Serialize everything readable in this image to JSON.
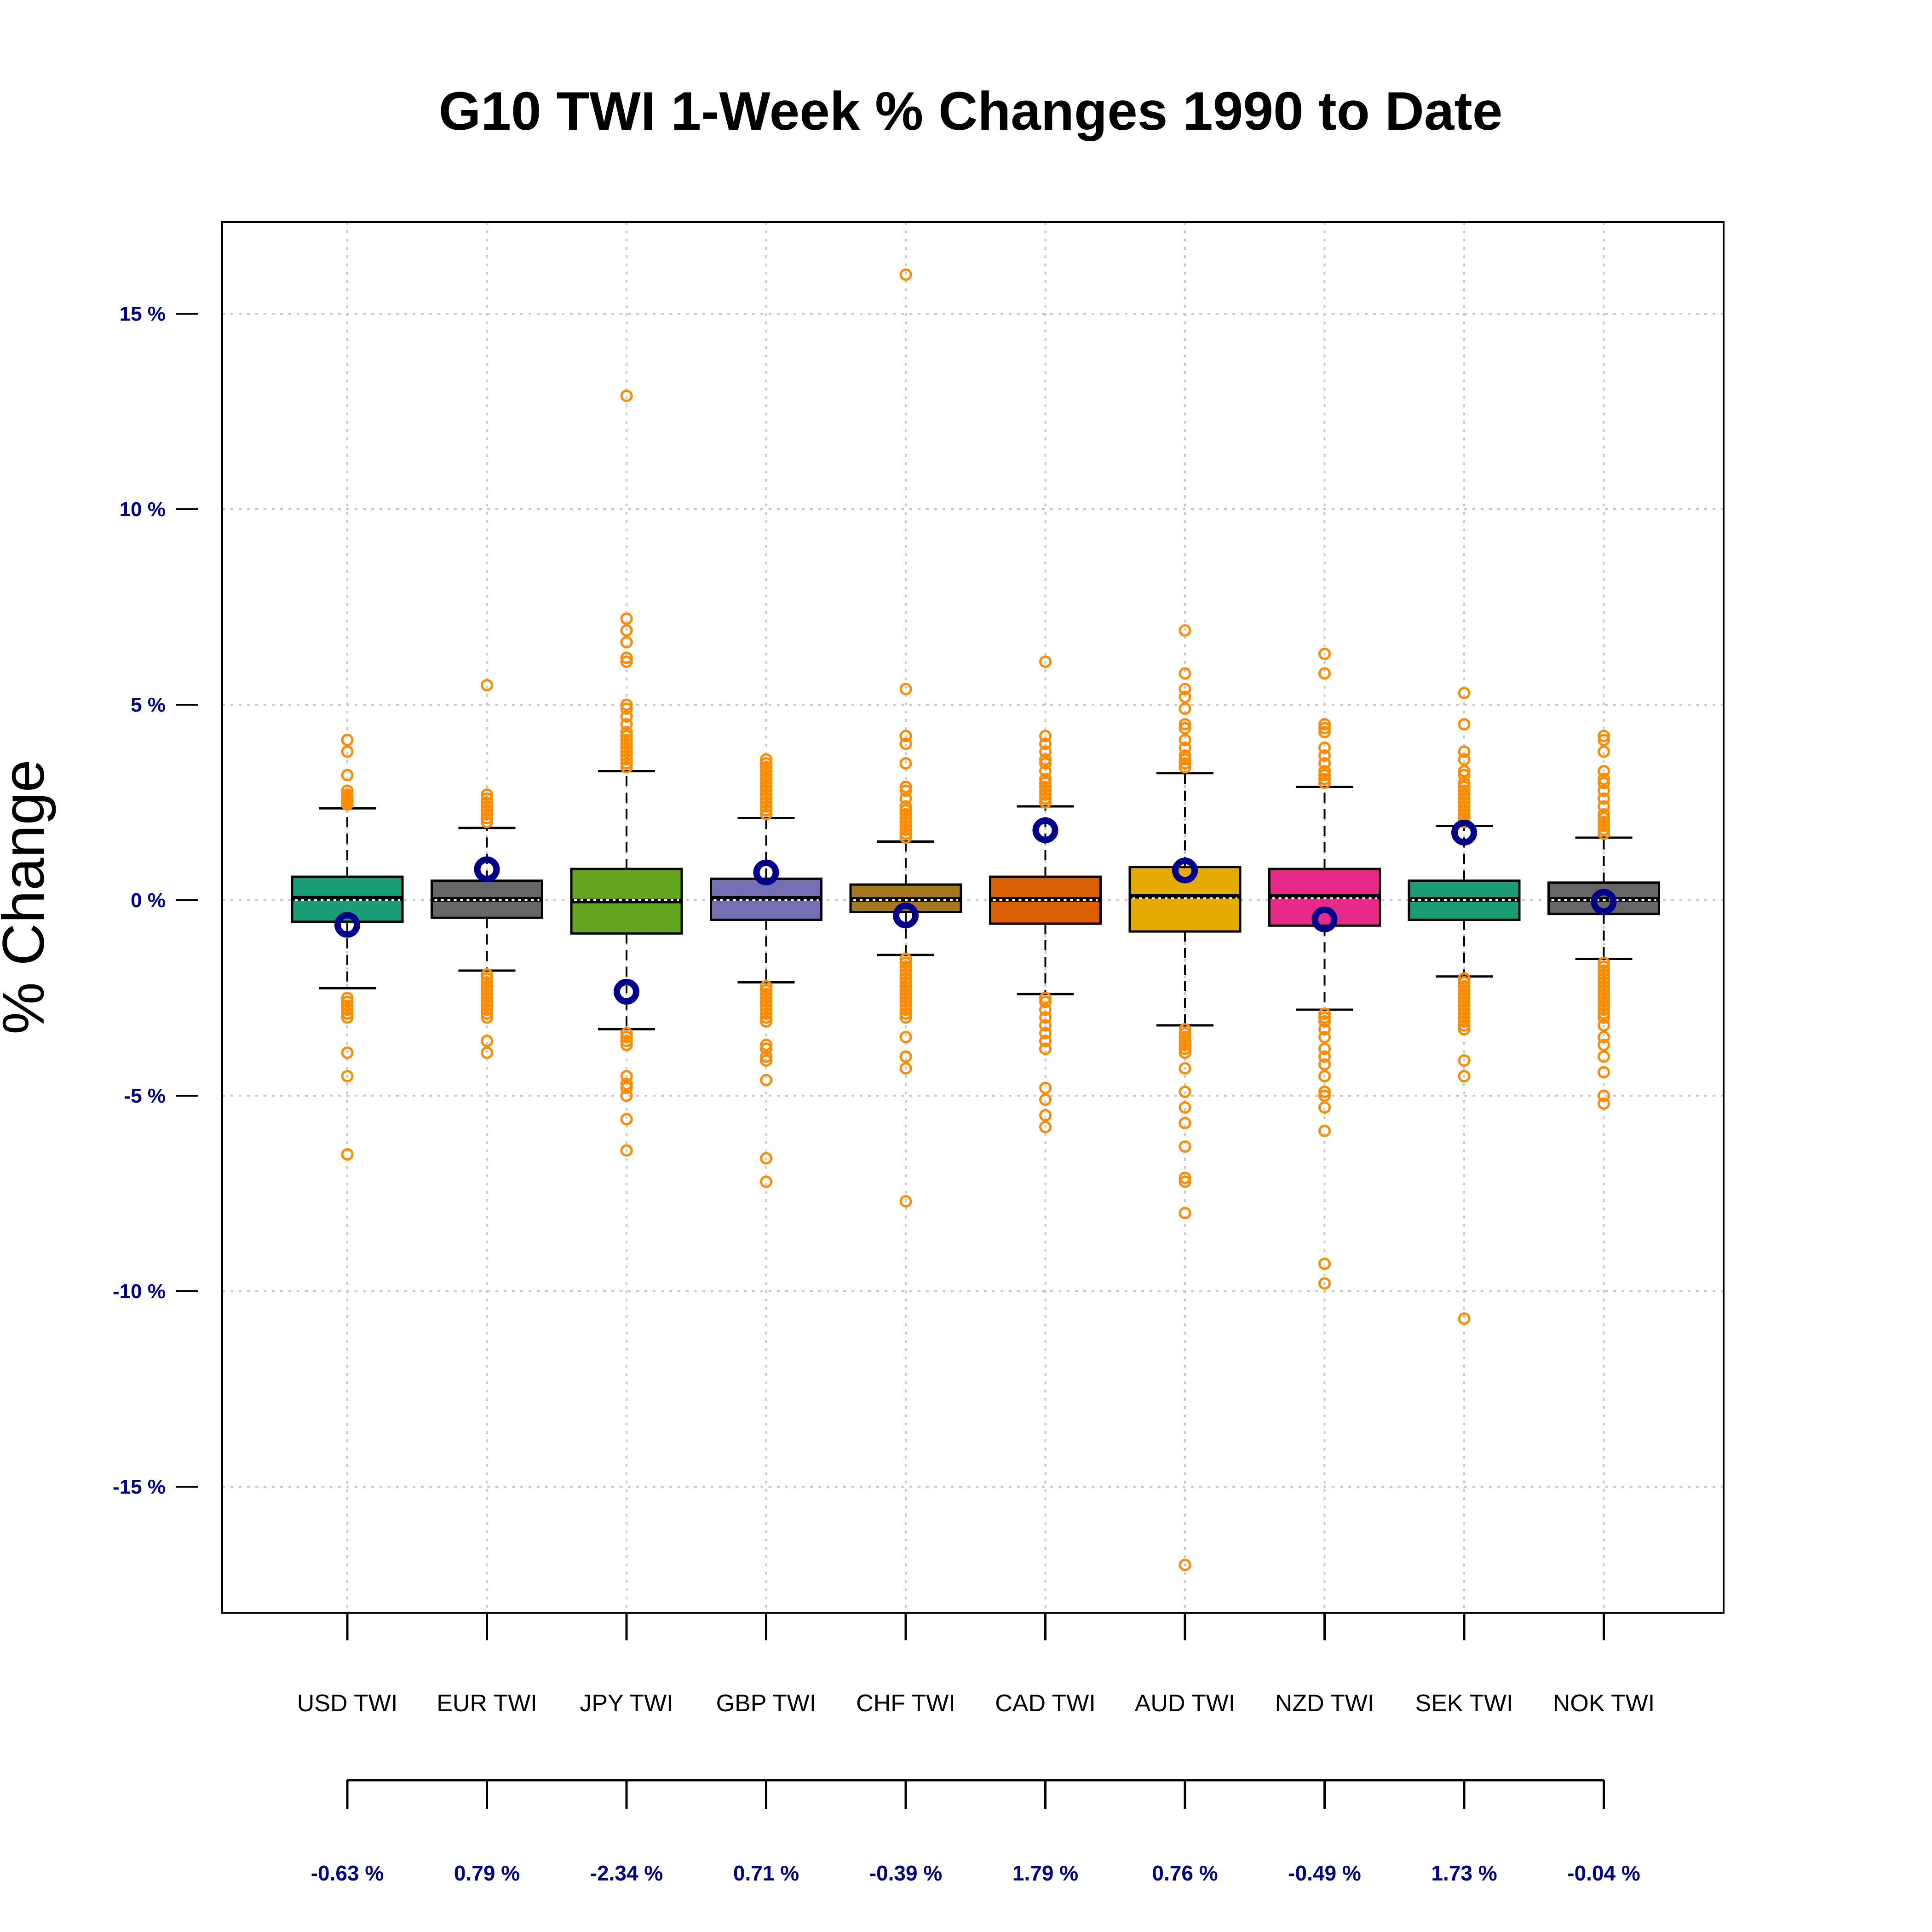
{
  "chart_data": {
    "type": "boxplot",
    "title": "G10 TWI 1-Week % Changes 1990 to Date",
    "xlabel": "",
    "ylabel": "% Change",
    "ylim": [
      -18.3,
      17.4
    ],
    "yticks": [
      15,
      10,
      5,
      0,
      -5,
      -10,
      -15
    ],
    "ytick_labels": [
      "15 %",
      "10 %",
      "5 %",
      "0 %",
      "-5 %",
      "-10 %",
      "-15 %"
    ],
    "grid": true,
    "colors": {
      "outlier": "#FF8C00",
      "latest_marker": "#00008B",
      "axis_text": "#00008B",
      "grid": "#C8C8C8"
    },
    "categories": [
      "USD TWI",
      "EUR TWI",
      "JPY TWI",
      "GBP TWI",
      "CHF TWI",
      "CAD TWI",
      "AUD TWI",
      "NZD TWI",
      "SEK TWI",
      "NOK TWI"
    ],
    "boxes": [
      {
        "name": "USD TWI",
        "color": "#1B9E77",
        "q1": -0.55,
        "median": 0.05,
        "q3": 0.6,
        "mean": 0.0,
        "whisker_low": -2.25,
        "whisker_high": 2.35,
        "latest": -0.63,
        "latest_label": "-0.63 %",
        "outliers": [
          4.1,
          3.8,
          3.2,
          2.8,
          2.7,
          2.65,
          2.6,
          2.55,
          2.5,
          2.45,
          -2.5,
          -2.6,
          -2.7,
          -2.8,
          -2.9,
          -3.0,
          -3.9,
          -4.5,
          -6.5
        ]
      },
      {
        "name": "EUR TWI",
        "color": "#666666",
        "q1": -0.45,
        "median": 0.02,
        "q3": 0.5,
        "mean": 0.0,
        "whisker_low": -1.8,
        "whisker_high": 1.85,
        "latest": 0.79,
        "latest_label": "0.79 %",
        "outliers": [
          5.5,
          2.7,
          2.6,
          2.5,
          2.4,
          2.3,
          2.2,
          2.1,
          2.0,
          -1.9,
          -2.0,
          -2.1,
          -2.2,
          -2.3,
          -2.4,
          -2.5,
          -2.6,
          -2.7,
          -2.8,
          -2.9,
          -3.0,
          -3.6,
          -3.9
        ]
      },
      {
        "name": "JPY TWI",
        "color": "#66A61E",
        "q1": -0.85,
        "median": -0.02,
        "q3": 0.8,
        "mean": 0.0,
        "whisker_low": -3.3,
        "whisker_high": 3.3,
        "latest": -2.34,
        "latest_label": "-2.34 %",
        "outliers": [
          12.9,
          7.2,
          6.9,
          6.6,
          6.2,
          6.1,
          5.0,
          4.9,
          4.7,
          4.5,
          4.3,
          4.2,
          4.1,
          4.0,
          3.9,
          3.8,
          3.7,
          3.6,
          3.5,
          3.4,
          -3.4,
          -3.5,
          -3.6,
          -3.7,
          -4.5,
          -4.7,
          -4.8,
          -5.0,
          -5.6,
          -6.4
        ]
      },
      {
        "name": "GBP TWI",
        "color": "#7570B3",
        "q1": -0.5,
        "median": 0.05,
        "q3": 0.55,
        "mean": 0.0,
        "whisker_low": -2.1,
        "whisker_high": 2.1,
        "latest": 0.71,
        "latest_label": "0.71 %",
        "outliers": [
          3.6,
          3.5,
          3.4,
          3.3,
          3.2,
          3.1,
          3.0,
          2.9,
          2.8,
          2.7,
          2.6,
          2.5,
          2.4,
          2.3,
          2.2,
          -2.2,
          -2.3,
          -2.4,
          -2.5,
          -2.6,
          -2.7,
          -2.8,
          -2.9,
          -3.0,
          -3.1,
          -3.7,
          -3.8,
          -4.0,
          -4.1,
          -4.6,
          -6.6,
          -7.2
        ]
      },
      {
        "name": "CHF TWI",
        "color": "#A6761D",
        "q1": -0.3,
        "median": 0.02,
        "q3": 0.4,
        "mean": 0.0,
        "whisker_low": -1.4,
        "whisker_high": 1.5,
        "latest": -0.39,
        "latest_label": "-0.39 %",
        "outliers": [
          16.0,
          5.4,
          4.2,
          4.0,
          3.5,
          2.9,
          2.8,
          2.6,
          2.4,
          2.3,
          2.2,
          2.1,
          2.0,
          1.9,
          1.8,
          1.7,
          1.6,
          -1.5,
          -1.6,
          -1.7,
          -1.8,
          -1.9,
          -2.0,
          -2.1,
          -2.2,
          -2.3,
          -2.4,
          -2.5,
          -2.6,
          -2.7,
          -2.8,
          -2.9,
          -3.0,
          -3.5,
          -4.0,
          -4.3,
          -7.7
        ]
      },
      {
        "name": "CAD TWI",
        "color": "#D95F02",
        "q1": -0.6,
        "median": 0.02,
        "q3": 0.6,
        "mean": 0.0,
        "whisker_low": -2.4,
        "whisker_high": 2.4,
        "latest": 1.79,
        "latest_label": "1.79 %",
        "outliers": [
          6.1,
          4.2,
          4.0,
          3.8,
          3.6,
          3.5,
          3.3,
          3.1,
          3.0,
          2.9,
          2.8,
          2.7,
          2.6,
          2.5,
          -2.5,
          -2.6,
          -2.8,
          -3.0,
          -3.2,
          -3.4,
          -3.6,
          -3.8,
          -4.8,
          -5.1,
          -5.5,
          -5.8
        ]
      },
      {
        "name": "AUD TWI",
        "color": "#E6AB02",
        "q1": -0.8,
        "median": 0.1,
        "q3": 0.85,
        "mean": 0.05,
        "whisker_low": -3.2,
        "whisker_high": 3.25,
        "latest": 0.76,
        "latest_label": "0.76 %",
        "outliers": [
          6.9,
          5.8,
          5.4,
          5.2,
          4.9,
          4.5,
          4.4,
          4.1,
          3.9,
          3.7,
          3.6,
          3.5,
          3.4,
          -3.3,
          -3.4,
          -3.5,
          -3.6,
          -3.7,
          -3.8,
          -3.9,
          -4.3,
          -4.9,
          -5.3,
          -5.7,
          -6.3,
          -7.1,
          -7.2,
          -8.0,
          -17.0
        ]
      },
      {
        "name": "NZD TWI",
        "color": "#E7298A",
        "q1": -0.65,
        "median": 0.1,
        "q3": 0.8,
        "mean": 0.05,
        "whisker_low": -2.8,
        "whisker_high": 2.9,
        "latest": -0.49,
        "latest_label": "-0.49 %",
        "outliers": [
          6.3,
          5.8,
          4.5,
          4.4,
          4.3,
          3.9,
          3.7,
          3.5,
          3.3,
          3.2,
          3.1,
          3.0,
          -2.9,
          -3.0,
          -3.1,
          -3.3,
          -3.5,
          -3.8,
          -4.0,
          -4.2,
          -4.5,
          -4.9,
          -5.0,
          -5.3,
          -5.9,
          -9.3,
          -9.8
        ]
      },
      {
        "name": "SEK TWI",
        "color": "#1B9E77",
        "q1": -0.5,
        "median": 0.02,
        "q3": 0.5,
        "mean": 0.0,
        "whisker_low": -1.95,
        "whisker_high": 1.9,
        "latest": 1.73,
        "latest_label": "1.73 %",
        "outliers": [
          5.3,
          4.5,
          3.8,
          3.6,
          3.3,
          3.2,
          3.0,
          2.9,
          2.8,
          2.7,
          2.6,
          2.5,
          2.4,
          2.3,
          2.2,
          2.1,
          2.0,
          -2.0,
          -2.1,
          -2.2,
          -2.3,
          -2.4,
          -2.5,
          -2.6,
          -2.7,
          -2.8,
          -2.9,
          -3.0,
          -3.1,
          -3.2,
          -3.3,
          -4.1,
          -4.5,
          -10.7
        ]
      },
      {
        "name": "NOK TWI",
        "color": "#666666",
        "q1": -0.35,
        "median": 0.02,
        "q3": 0.45,
        "mean": 0.0,
        "whisker_low": -1.5,
        "whisker_high": 1.6,
        "latest": -0.04,
        "latest_label": "-0.04 %",
        "outliers": [
          4.2,
          4.1,
          3.8,
          3.3,
          3.1,
          3.0,
          2.8,
          2.6,
          2.4,
          2.2,
          2.1,
          2.0,
          1.9,
          1.8,
          1.7,
          -1.6,
          -1.7,
          -1.8,
          -1.9,
          -2.0,
          -2.1,
          -2.2,
          -2.3,
          -2.4,
          -2.5,
          -2.6,
          -2.7,
          -2.8,
          -2.9,
          -3.0,
          -3.2,
          -3.5,
          -3.7,
          -4.0,
          -4.4,
          -5.0,
          -5.2
        ]
      }
    ]
  }
}
